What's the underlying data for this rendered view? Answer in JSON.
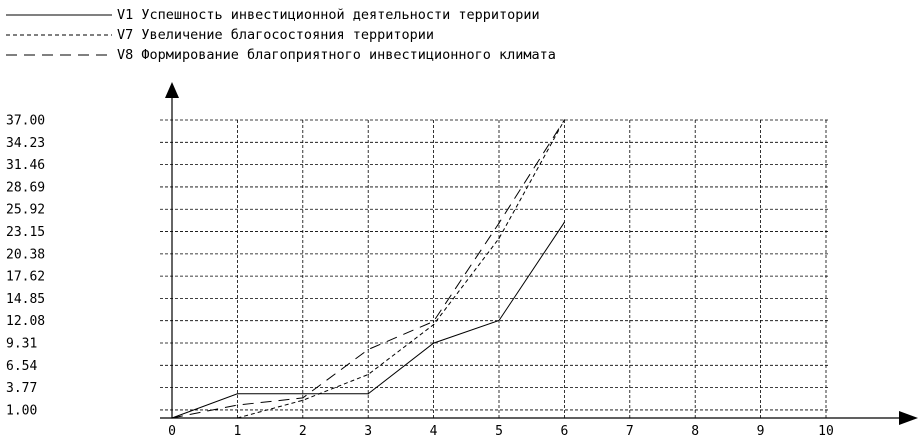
{
  "chart_data": {
    "type": "line",
    "legend_position": "top-left",
    "grid": true,
    "xlim": [
      0,
      10
    ],
    "ylim": [
      0,
      37
    ],
    "x_ticks": [
      "0",
      "1",
      "2",
      "3",
      "4",
      "5",
      "6",
      "7",
      "8",
      "9",
      "10"
    ],
    "y_ticks": [
      "37.00",
      "34.23",
      "31.46",
      "28.69",
      "25.92",
      "23.15",
      "20.38",
      "17.62",
      "14.85",
      "12.08",
      "9.31",
      "6.54",
      "3.77",
      "1.00"
    ],
    "y_tick_values": [
      37.0,
      34.23,
      31.46,
      28.69,
      25.92,
      23.15,
      20.38,
      17.62,
      14.85,
      12.08,
      9.31,
      6.54,
      3.77,
      1.0
    ],
    "series": [
      {
        "name": "V1 Успешность инвестиционной деятельности территории",
        "line_style": "solid",
        "x": [
          0,
          1,
          2,
          3,
          4,
          5,
          6
        ],
        "y": [
          0,
          3,
          3,
          3,
          9.3,
          12.1,
          24.3
        ]
      },
      {
        "name": "V7 Увеличение благосостояния территории",
        "line_style": "dotted",
        "x": [
          1,
          2,
          3,
          4,
          5,
          6
        ],
        "y": [
          0,
          2.2,
          5.4,
          11.6,
          22.3,
          37.0
        ]
      },
      {
        "name": "V8 Формирование благоприятного инвестиционного климата",
        "line_style": "dashed",
        "x": [
          0,
          1,
          2,
          3,
          4,
          5,
          6
        ],
        "y": [
          0,
          1.6,
          2.5,
          8.5,
          12.0,
          24.2,
          37.0
        ]
      }
    ]
  }
}
